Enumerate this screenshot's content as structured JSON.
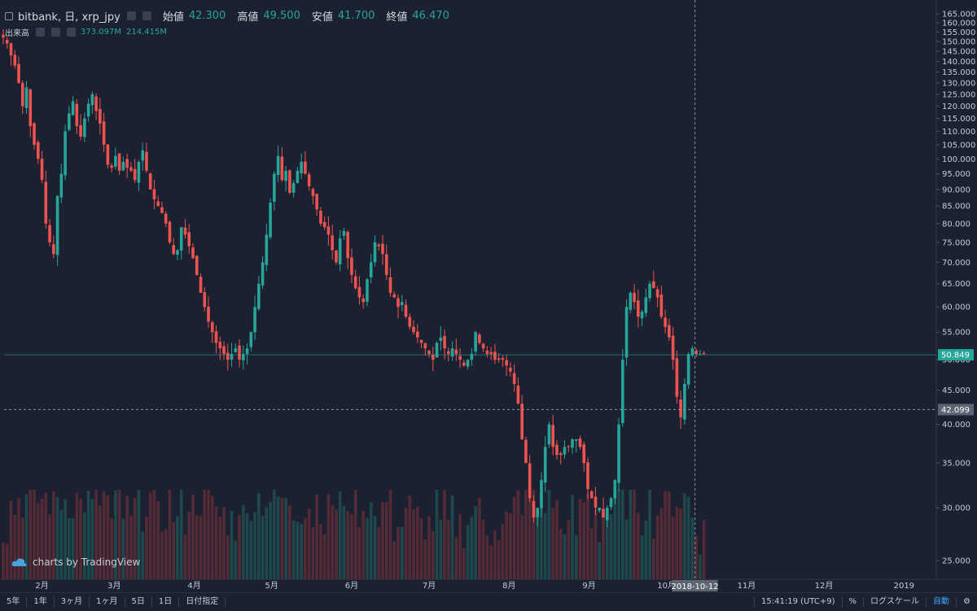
{
  "header": {
    "symbol": "bitbank, 日, xrp_jpy",
    "open_label": "始値",
    "open": "42.300",
    "high_label": "高値",
    "high": "49.500",
    "low_label": "安値",
    "low": "41.700",
    "close_label": "終値",
    "close": "46.470"
  },
  "volume_legend": {
    "label": "出来高",
    "v1": "373.097M",
    "v2": "214.415M"
  },
  "watermark": "charts by TradingView",
  "bottom": {
    "ranges": [
      "5年",
      "1年",
      "3ヶ月",
      "1ヶ月",
      "5日",
      "1日",
      "日付指定"
    ],
    "time": "15:41:19 (UTC+9)",
    "percent": "%",
    "log": "ログスケール",
    "auto": "自動",
    "gear": "gear-icon"
  },
  "colors": {
    "up": "#26a69a",
    "down": "#ef5350",
    "background": "#1b2130"
  },
  "chart_data": {
    "type": "candlestick",
    "y_ticks": [
      "165.000",
      "160.000",
      "155.000",
      "150.000",
      "145.000",
      "140.000",
      "135.000",
      "130.000",
      "125.000",
      "120.000",
      "115.000",
      "110.000",
      "105.000",
      "100.000",
      "95.000",
      "90.000",
      "85.000",
      "80.000",
      "75.000",
      "70.000",
      "65.000",
      "60.000",
      "55.000",
      "50.000",
      "45.000",
      "40.000",
      "35.000",
      "30.000",
      "25.000"
    ],
    "y_scale": "log",
    "x_ticks": [
      "2月",
      "3月",
      "4月",
      "5月",
      "6月",
      "7月",
      "8月",
      "9月",
      "10月",
      "11月",
      "12月",
      "2019"
    ],
    "x_start": "2018-01-17",
    "crosshair_date": "2018-10-12",
    "crosshair_price": "42.099",
    "last_price": "50.849",
    "closes": [
      152,
      149,
      143,
      138,
      130,
      120,
      128,
      112,
      105,
      100,
      93,
      80,
      75,
      72,
      88,
      95,
      110,
      117,
      122,
      112,
      108,
      115,
      121,
      125,
      118,
      113,
      105,
      98,
      97,
      101,
      96,
      99,
      97,
      96,
      93,
      99,
      103,
      96,
      90,
      87,
      85,
      83,
      80,
      75,
      72,
      73,
      79,
      77,
      74,
      71,
      67,
      63,
      60,
      57,
      55,
      53,
      52,
      51,
      50,
      51,
      52,
      50,
      51,
      52,
      55,
      60,
      65,
      70,
      77,
      86,
      95,
      101,
      93,
      96,
      89,
      92,
      96,
      99,
      95,
      91,
      88,
      84,
      80,
      79,
      77,
      73,
      70,
      76,
      78,
      71,
      67,
      64,
      62,
      61,
      66,
      70,
      75,
      74,
      72,
      67,
      63,
      62,
      60,
      61,
      58,
      56,
      55,
      54,
      53,
      52,
      51,
      50,
      53,
      54,
      52,
      51,
      52,
      51,
      50,
      49,
      50,
      51,
      55,
      53,
      52,
      51,
      51,
      50,
      50,
      50,
      49,
      48,
      46,
      43,
      38,
      35,
      31,
      29,
      30,
      33,
      37,
      40,
      37,
      36,
      36,
      37,
      37,
      38,
      38,
      37,
      35,
      32,
      31,
      30,
      30,
      29,
      30,
      31,
      33,
      40,
      50,
      60,
      63,
      61,
      58,
      59,
      62,
      65,
      64,
      62,
      58,
      56,
      54,
      50,
      44,
      41,
      46,
      51,
      52,
      51,
      51,
      51
    ]
  }
}
